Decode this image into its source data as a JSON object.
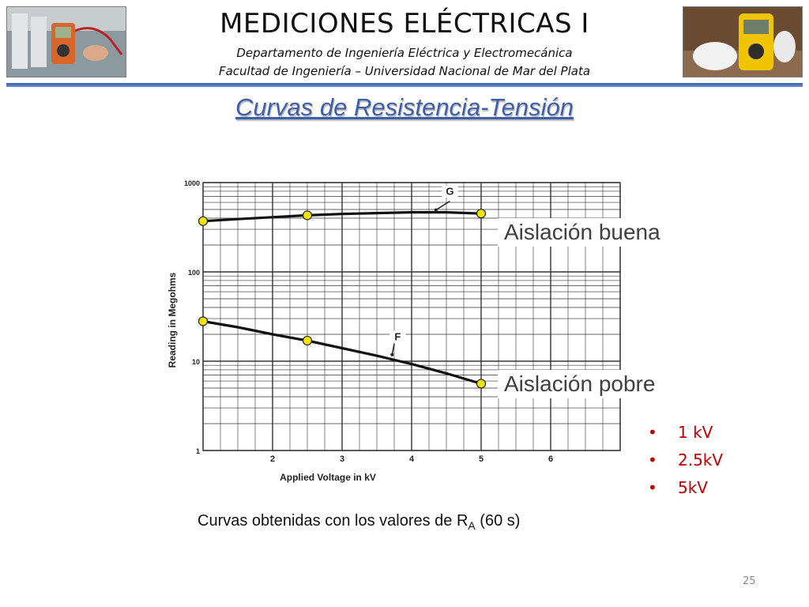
{
  "header": {
    "title": "MEDICIONES ELÉCTRICAS I",
    "department": "Departamento de Ingeniería Eléctrica y Electromecánica",
    "faculty": "Facultad de Ingeniería – Universidad Nacional de Mar del Plata"
  },
  "slide": {
    "title": "Curvas de Resistencia-Tensión",
    "caption_main": "Curvas obtenidas con los valores de R",
    "caption_sub": "A",
    "caption_tail": " (60 s)",
    "page_number": "25"
  },
  "callouts": {
    "good": "Aislación buena",
    "poor": "Aislación pobre"
  },
  "voltages": {
    "bullet": "•",
    "items": [
      "1 kV",
      "2.5kV",
      "5kV"
    ]
  },
  "colors": {
    "accent_blue": "#3f5fa8",
    "bullet_red": "#c00000",
    "marker_yellow": "#f2e600"
  },
  "chart_data": {
    "type": "line",
    "x_scale": "linear",
    "y_scale": "log",
    "xlim": [
      1,
      7
    ],
    "ylim": [
      1,
      1000
    ],
    "x_ticks": [
      2,
      3,
      4,
      5,
      6
    ],
    "y_ticks": [
      1,
      10,
      100,
      1000
    ],
    "y_tick_labels": [
      "1",
      "10",
      "100",
      "1000"
    ],
    "xlabel": "Applied Voltage in kV",
    "ylabel": "Reading in Megohms",
    "grid": true,
    "series": [
      {
        "name": "G",
        "x": [
          1,
          1.5,
          2,
          2.5,
          3,
          3.5,
          4,
          4.5,
          5
        ],
        "y": [
          370,
          390,
          410,
          430,
          445,
          455,
          465,
          465,
          450
        ],
        "markers_at": [
          1,
          2.5,
          5
        ]
      },
      {
        "name": "F",
        "x": [
          1,
          1.5,
          2,
          2.5,
          3,
          3.5,
          4,
          4.5,
          5
        ],
        "y": [
          28,
          24,
          20,
          17,
          14,
          11.5,
          9.3,
          7.3,
          5.6
        ],
        "markers_at": [
          1,
          2.5,
          5
        ]
      }
    ]
  }
}
